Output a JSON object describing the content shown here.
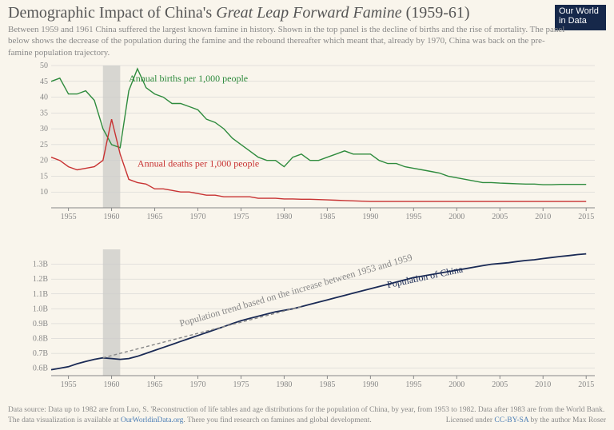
{
  "title_pre": "Demographic Impact of China's ",
  "title_italic": "Great Leap Forward Famine",
  "title_post": " (1959-61)",
  "subtitle": "Between 1959 and 1961 China suffered the largest known famine in history. Shown in the top panel is the decline of births and the rise of mortality. The panel below shows the decrease of the population during the famine and the rebound thereafter which meant that, already by 1970, China was back on the pre-famine population trajectory.",
  "logo": "Our World in Data",
  "colors": {
    "background": "#f9f5ec",
    "births": "#2e8b3d",
    "deaths": "#c83232",
    "population": "#1a2a55",
    "trend": "#888888",
    "axis": "#888888",
    "grid": "#cccccc",
    "famine_band": "#bbbbbb",
    "text": "#555555"
  },
  "famine_years": [
    1959,
    1961
  ],
  "top_chart": {
    "type": "line",
    "xlim": [
      1953,
      2016
    ],
    "ylim": [
      5,
      50
    ],
    "yticks": [
      10,
      15,
      20,
      25,
      30,
      35,
      40,
      45,
      50
    ],
    "xticks": [
      1955,
      1960,
      1965,
      1970,
      1975,
      1980,
      1985,
      1990,
      1995,
      2000,
      2005,
      2010,
      2015
    ],
    "series": {
      "births": {
        "label": "Annual births per 1,000 people",
        "label_x": 1962,
        "label_y": 45,
        "years": [
          1953,
          1954,
          1955,
          1956,
          1957,
          1958,
          1959,
          1960,
          1961,
          1962,
          1963,
          1964,
          1965,
          1966,
          1967,
          1968,
          1969,
          1970,
          1971,
          1972,
          1973,
          1974,
          1975,
          1976,
          1977,
          1978,
          1979,
          1980,
          1981,
          1982,
          1983,
          1984,
          1985,
          1986,
          1987,
          1988,
          1989,
          1990,
          1991,
          1992,
          1993,
          1994,
          1995,
          1996,
          1997,
          1998,
          1999,
          2000,
          2001,
          2002,
          2003,
          2004,
          2005,
          2006,
          2007,
          2008,
          2009,
          2010,
          2011,
          2012,
          2013,
          2014,
          2015
        ],
        "values": [
          45,
          46,
          41,
          41,
          42,
          39,
          30,
          25,
          24,
          42,
          49,
          43,
          41,
          40,
          38,
          38,
          37,
          36,
          33,
          32,
          30,
          27,
          25,
          23,
          21,
          20,
          20,
          18,
          21,
          22,
          20,
          20,
          21,
          22,
          23,
          22,
          22,
          22,
          20,
          19,
          19,
          18,
          17.5,
          17,
          16.5,
          16,
          15,
          14.5,
          14,
          13.5,
          13,
          13,
          12.8,
          12.7,
          12.6,
          12.5,
          12.5,
          12.3,
          12.3,
          12.4,
          12.4,
          12.4,
          12.4
        ]
      },
      "deaths": {
        "label": "Annual deaths per 1,000 people",
        "label_x": 1963,
        "label_y": 18,
        "years": [
          1953,
          1954,
          1955,
          1956,
          1957,
          1958,
          1959,
          1960,
          1961,
          1962,
          1963,
          1964,
          1965,
          1966,
          1967,
          1968,
          1969,
          1970,
          1971,
          1972,
          1973,
          1974,
          1975,
          1976,
          1977,
          1978,
          1979,
          1980,
          1981,
          1982,
          1983,
          1984,
          1985,
          1986,
          1987,
          1988,
          1989,
          1990,
          1991,
          1992,
          1993,
          1994,
          1995,
          1996,
          1997,
          1998,
          1999,
          2000,
          2001,
          2002,
          2003,
          2004,
          2005,
          2006,
          2007,
          2008,
          2009,
          2010,
          2011,
          2012,
          2013,
          2014,
          2015
        ],
        "values": [
          21,
          20,
          18,
          17,
          17.5,
          18,
          20,
          33,
          22,
          14,
          13,
          12.5,
          11,
          11,
          10.5,
          10,
          10,
          9.5,
          9,
          9,
          8.5,
          8.5,
          8.5,
          8.5,
          8,
          8,
          8,
          7.8,
          7.8,
          7.7,
          7.7,
          7.6,
          7.5,
          7.4,
          7.3,
          7.2,
          7.1,
          7,
          7,
          7,
          7,
          7,
          7,
          7,
          7,
          7,
          7,
          7,
          7,
          7,
          7,
          7,
          7,
          7,
          7,
          7,
          7,
          7,
          7,
          7,
          7,
          7,
          7
        ]
      }
    }
  },
  "bottom_chart": {
    "type": "line",
    "xlim": [
      1953,
      2016
    ],
    "ylim": [
      0.55,
      1.4
    ],
    "yticks": [
      0.6,
      0.7,
      0.8,
      0.9,
      1.0,
      1.1,
      1.2,
      1.3
    ],
    "ytick_labels": [
      "0.6B",
      "0.7B",
      "0.8B",
      "0.9B",
      "1.0B",
      "1.1B",
      "1.2B",
      "1.3B"
    ],
    "xticks": [
      1955,
      1960,
      1965,
      1970,
      1975,
      1980,
      1985,
      1990,
      1995,
      2000,
      2005,
      2010,
      2015
    ],
    "series": {
      "population": {
        "label": "Population of China",
        "label_x": 1992,
        "label_y": 1.14,
        "years": [
          1953,
          1954,
          1955,
          1956,
          1957,
          1958,
          1959,
          1960,
          1961,
          1962,
          1963,
          1964,
          1965,
          1966,
          1967,
          1968,
          1969,
          1970,
          1971,
          1972,
          1973,
          1974,
          1975,
          1976,
          1977,
          1978,
          1979,
          1980,
          1981,
          1982,
          1983,
          1984,
          1985,
          1986,
          1987,
          1988,
          1989,
          1990,
          1991,
          1992,
          1993,
          1994,
          1995,
          1996,
          1997,
          1998,
          1999,
          2000,
          2001,
          2002,
          2003,
          2004,
          2005,
          2006,
          2007,
          2008,
          2009,
          2010,
          2011,
          2012,
          2013,
          2014,
          2015
        ],
        "values": [
          0.59,
          0.6,
          0.61,
          0.63,
          0.645,
          0.66,
          0.67,
          0.665,
          0.66,
          0.665,
          0.68,
          0.7,
          0.72,
          0.74,
          0.76,
          0.78,
          0.8,
          0.82,
          0.84,
          0.86,
          0.88,
          0.9,
          0.92,
          0.935,
          0.95,
          0.965,
          0.98,
          0.99,
          1.0,
          1.015,
          1.03,
          1.045,
          1.06,
          1.075,
          1.09,
          1.105,
          1.12,
          1.135,
          1.15,
          1.165,
          1.18,
          1.195,
          1.21,
          1.22,
          1.23,
          1.24,
          1.25,
          1.26,
          1.27,
          1.28,
          1.29,
          1.3,
          1.305,
          1.31,
          1.318,
          1.325,
          1.33,
          1.338,
          1.345,
          1.352,
          1.358,
          1.365,
          1.37
        ]
      },
      "trend": {
        "label": "Population trend based on the increase between 1953 and 1959",
        "label_x": 1968,
        "label_y": 0.88,
        "years": [
          1959,
          1982
        ],
        "values": [
          0.67,
          1.015
        ],
        "dash": "4,3"
      }
    }
  },
  "footer_line1_pre": "Data source: Data up to 1982 are from Luo, S. 'Reconstruction of life tables and age distributions for the population of China, by year, from 1953 to 1982. Data after 1983 are from the World Bank.",
  "footer_line2_pre": "The data visualization is available at ",
  "footer_link1": "OurWorldinData.org",
  "footer_line2_mid": ". There you find research on famines and global development.",
  "footer_lic_pre": "Licensed under ",
  "footer_lic_link": "CC-BY-SA",
  "footer_lic_post": " by the author Max Roser"
}
